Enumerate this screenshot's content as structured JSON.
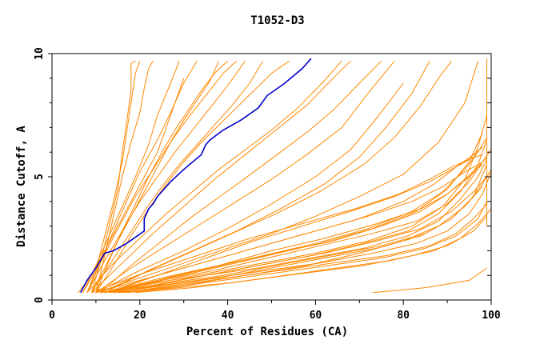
{
  "chart_data": {
    "type": "line",
    "title": "T1052-D3",
    "xlabel": "Percent of Residues (CA)",
    "ylabel": "Distance Cutoff, A",
    "xlim": [
      0,
      100
    ],
    "ylim": [
      0,
      10
    ],
    "x_ticks": [
      "0",
      "20",
      "40",
      "60",
      "80",
      "100"
    ],
    "y_ticks": [
      "0",
      "5",
      "10"
    ],
    "grid": false,
    "colors": {
      "others": "#ff8800",
      "highlight": "#0000cc"
    },
    "highlight_series": {
      "x": [
        6.5,
        8,
        10,
        11,
        12,
        14,
        17,
        21,
        21,
        22,
        23,
        24,
        25,
        26,
        27,
        30,
        34,
        35,
        36,
        39,
        43,
        47,
        49,
        53,
        57,
        59
      ],
      "y": [
        0.3,
        0.8,
        1.3,
        1.6,
        1.9,
        2.0,
        2.3,
        2.8,
        3.3,
        3.7,
        3.9,
        4.2,
        4.4,
        4.6,
        4.8,
        5.3,
        5.9,
        6.3,
        6.5,
        6.9,
        7.3,
        7.8,
        8.3,
        8.8,
        9.4,
        9.8
      ]
    },
    "series": [
      {
        "x": [
          9,
          11,
          13,
          15,
          16,
          17,
          18,
          18,
          19
        ],
        "y": [
          0.3,
          1.5,
          3.0,
          4.5,
          6.0,
          7.2,
          8.5,
          9.6,
          9.7
        ]
      },
      {
        "x": [
          8,
          10,
          12,
          14,
          16,
          17,
          18,
          19,
          20
        ],
        "y": [
          0.3,
          1.2,
          2.6,
          4.0,
          5.6,
          6.8,
          8.0,
          9.2,
          9.7
        ]
      },
      {
        "x": [
          10,
          12,
          14,
          16,
          18,
          20,
          21,
          22,
          23
        ],
        "y": [
          0.3,
          1.8,
          3.4,
          5.0,
          6.4,
          7.6,
          8.6,
          9.4,
          9.7
        ]
      },
      {
        "x": [
          7,
          10,
          13,
          16,
          19,
          22,
          24,
          27,
          29
        ],
        "y": [
          0.3,
          1.4,
          2.6,
          3.8,
          5.0,
          6.3,
          7.5,
          8.8,
          9.7
        ]
      },
      {
        "x": [
          8,
          11,
          14,
          17,
          20,
          24,
          27,
          30,
          33
        ],
        "y": [
          0.3,
          1.5,
          2.8,
          4.0,
          5.2,
          6.5,
          7.6,
          8.8,
          9.7
        ]
      },
      {
        "x": [
          6,
          9,
          12,
          15,
          18,
          21,
          24,
          27,
          30
        ],
        "y": [
          0.3,
          1.0,
          2.0,
          3.0,
          4.0,
          5.0,
          6.0,
          7.5,
          9.0
        ]
      },
      {
        "x": [
          9,
          12,
          15,
          18,
          21,
          24,
          27,
          30,
          33,
          36,
          38
        ],
        "y": [
          0.3,
          1.3,
          2.4,
          3.4,
          4.4,
          5.4,
          6.4,
          7.3,
          8.1,
          8.9,
          9.7
        ]
      },
      {
        "x": [
          10,
          13,
          16,
          19,
          22,
          25,
          28,
          31,
          34,
          37,
          40
        ],
        "y": [
          0.3,
          1.6,
          2.8,
          3.9,
          5.0,
          6.0,
          6.9,
          7.7,
          8.5,
          9.2,
          9.7
        ]
      },
      {
        "x": [
          8,
          12,
          16,
          20,
          24,
          28,
          32,
          36,
          40,
          44
        ],
        "y": [
          0.3,
          1.6,
          2.8,
          4.0,
          5.0,
          6.0,
          6.9,
          7.8,
          8.7,
          9.7
        ]
      },
      {
        "x": [
          7,
          11,
          15,
          19,
          23,
          27,
          31,
          35,
          39,
          42
        ],
        "y": [
          0.3,
          1.5,
          2.9,
          4.2,
          5.3,
          6.4,
          7.4,
          8.3,
          9.2,
          9.7
        ]
      },
      {
        "x": [
          9,
          13,
          17,
          21,
          25,
          29,
          33,
          37,
          41,
          45,
          48
        ],
        "y": [
          0.3,
          1.4,
          2.5,
          3.6,
          4.6,
          5.5,
          6.3,
          7.1,
          7.9,
          8.8,
          9.7
        ]
      },
      {
        "x": [
          10,
          14,
          18,
          22,
          26,
          30,
          34,
          38,
          42,
          46,
          50,
          54
        ],
        "y": [
          0.3,
          1.4,
          2.6,
          3.7,
          4.7,
          5.6,
          6.4,
          7.1,
          7.8,
          8.5,
          9.2,
          9.7
        ]
      },
      {
        "x": [
          8,
          14,
          20,
          26,
          32,
          38,
          44,
          50,
          56,
          62,
          66
        ],
        "y": [
          0.3,
          1.5,
          2.5,
          3.5,
          4.4,
          5.3,
          6.1,
          6.9,
          7.8,
          8.9,
          9.7
        ]
      },
      {
        "x": [
          9,
          16,
          23,
          30,
          37,
          44,
          51,
          58,
          64,
          68
        ],
        "y": [
          0.3,
          1.5,
          2.7,
          3.8,
          4.9,
          5.9,
          6.9,
          7.9,
          9.0,
          9.7
        ]
      },
      {
        "x": [
          11,
          18,
          25,
          32,
          39,
          46,
          52,
          58,
          64,
          70,
          75
        ],
        "y": [
          0.3,
          1.4,
          2.4,
          3.4,
          4.3,
          5.2,
          6.0,
          6.8,
          7.7,
          8.8,
          9.7
        ]
      },
      {
        "x": [
          10,
          18,
          26,
          34,
          42,
          50,
          58,
          66,
          72,
          78
        ],
        "y": [
          0.3,
          1.3,
          2.2,
          3.1,
          4.0,
          4.9,
          5.9,
          7.0,
          8.4,
          9.7
        ]
      },
      {
        "x": [
          12,
          22,
          32,
          42,
          52,
          62,
          70,
          76,
          82,
          86
        ],
        "y": [
          0.3,
          1.2,
          2.0,
          2.8,
          3.7,
          4.7,
          5.8,
          7.0,
          8.4,
          9.7
        ]
      },
      {
        "x": [
          11,
          21,
          31,
          41,
          51,
          61,
          71,
          78,
          84,
          88,
          91
        ],
        "y": [
          0.3,
          1.1,
          1.9,
          2.7,
          3.5,
          4.4,
          5.5,
          6.6,
          7.9,
          9.0,
          9.7
        ]
      },
      {
        "x": [
          10,
          20,
          30,
          40,
          50,
          60,
          70,
          80,
          88,
          94,
          97
        ],
        "y": [
          0.3,
          0.9,
          1.5,
          2.1,
          2.7,
          3.4,
          4.2,
          5.1,
          6.4,
          8.0,
          9.7
        ]
      },
      {
        "x": [
          13,
          25,
          37,
          49,
          61,
          73,
          83,
          90,
          95,
          98
        ],
        "y": [
          0.3,
          0.8,
          1.3,
          1.8,
          2.3,
          2.9,
          3.6,
          4.5,
          5.6,
          6.8
        ]
      },
      {
        "x": [
          12,
          24,
          36,
          48,
          60,
          72,
          82,
          89,
          94,
          97,
          99
        ],
        "y": [
          0.3,
          0.7,
          1.1,
          1.5,
          1.9,
          2.4,
          3.0,
          3.8,
          4.9,
          6.2,
          7.5
        ]
      },
      {
        "x": [
          14,
          26,
          38,
          50,
          62,
          74,
          84,
          91,
          96,
          99
        ],
        "y": [
          0.3,
          0.6,
          0.9,
          1.3,
          1.7,
          2.1,
          2.6,
          3.3,
          4.2,
          5.5
        ]
      },
      {
        "x": [
          11,
          23,
          35,
          47,
          59,
          71,
          81,
          88,
          93,
          97,
          99
        ],
        "y": [
          0.3,
          0.7,
          1.0,
          1.4,
          1.8,
          2.3,
          2.8,
          3.5,
          4.4,
          5.5,
          6.5
        ]
      },
      {
        "x": [
          13,
          25,
          37,
          49,
          61,
          73,
          83,
          90,
          95,
          98,
          100
        ],
        "y": [
          0.3,
          0.6,
          0.9,
          1.2,
          1.5,
          1.9,
          2.3,
          2.8,
          3.5,
          4.3,
          5.2
        ]
      },
      {
        "x": [
          15,
          27,
          39,
          51,
          63,
          75,
          85,
          92,
          97,
          99
        ],
        "y": [
          0.3,
          0.5,
          0.8,
          1.1,
          1.4,
          1.7,
          2.1,
          2.6,
          3.3,
          4.0
        ]
      },
      {
        "x": [
          12,
          24,
          36,
          48,
          60,
          72,
          82,
          89,
          94,
          97,
          99
        ],
        "y": [
          0.3,
          0.8,
          1.3,
          1.8,
          2.3,
          2.9,
          3.6,
          4.4,
          5.3,
          6.0,
          6.6
        ]
      },
      {
        "x": [
          10,
          22,
          34,
          46,
          58,
          70,
          80,
          87,
          92,
          96,
          98
        ],
        "y": [
          0.3,
          0.9,
          1.5,
          2.1,
          2.7,
          3.3,
          4.0,
          4.7,
          5.4,
          5.9,
          6.2
        ]
      },
      {
        "x": [
          14,
          26,
          38,
          50,
          62,
          74,
          84,
          91,
          96,
          99
        ],
        "y": [
          0.3,
          0.7,
          1.1,
          1.5,
          1.9,
          2.4,
          2.9,
          3.6,
          4.4,
          5.0
        ]
      },
      {
        "x": [
          16,
          28,
          40,
          52,
          64,
          76,
          86,
          92,
          96,
          99
        ],
        "y": [
          0.3,
          0.6,
          0.9,
          1.2,
          1.5,
          1.8,
          2.2,
          2.7,
          3.3,
          3.9
        ]
      },
      {
        "x": [
          13,
          25,
          37,
          49,
          61,
          73,
          83,
          90,
          95,
          98,
          100
        ],
        "y": [
          0.3,
          0.8,
          1.2,
          1.7,
          2.2,
          2.7,
          3.2,
          3.9,
          4.8,
          5.6,
          6.1
        ]
      },
      {
        "x": [
          11,
          23,
          35,
          47,
          59,
          71,
          81,
          88,
          93,
          97,
          99
        ],
        "y": [
          0.3,
          0.6,
          1.0,
          1.3,
          1.7,
          2.1,
          2.6,
          3.2,
          4.1,
          5.0,
          5.7
        ]
      },
      {
        "x": [
          17,
          29,
          41,
          53,
          65,
          77,
          87,
          93,
          97,
          100
        ],
        "y": [
          0.3,
          0.5,
          0.7,
          1.0,
          1.3,
          1.6,
          2.0,
          2.5,
          3.1,
          3.7
        ]
      },
      {
        "x": [
          12,
          24,
          36,
          48,
          60,
          72,
          82,
          89,
          94,
          98
        ],
        "y": [
          0.3,
          1.0,
          1.6,
          2.2,
          2.8,
          3.4,
          4.0,
          4.6,
          5.2,
          5.6
        ]
      },
      {
        "x": [
          15,
          27,
          39,
          51,
          63,
          75,
          85,
          91,
          95,
          98,
          100
        ],
        "y": [
          0.3,
          0.7,
          1.0,
          1.4,
          1.8,
          2.2,
          2.7,
          3.3,
          4.0,
          4.7,
          5.3
        ]
      },
      {
        "x": [
          9,
          21,
          33,
          45,
          57,
          69,
          79,
          86,
          91,
          95,
          98
        ],
        "y": [
          0.3,
          1.1,
          1.8,
          2.5,
          3.1,
          3.7,
          4.3,
          4.9,
          5.4,
          5.7,
          5.9
        ]
      },
      {
        "x": [
          14,
          26,
          38,
          50,
          62,
          74,
          84,
          90,
          94,
          97,
          99
        ],
        "y": [
          0.3,
          0.9,
          1.4,
          2.0,
          2.5,
          3.1,
          3.7,
          4.3,
          4.9,
          5.4,
          5.8
        ]
      },
      {
        "x": [
          13,
          24,
          35,
          46,
          57,
          68,
          78,
          86,
          92,
          96
        ],
        "y": [
          0.3,
          1.0,
          1.7,
          2.4,
          3.0,
          3.6,
          4.2,
          4.8,
          5.4,
          5.8
        ]
      },
      {
        "x": [
          10,
          20,
          30,
          40,
          50,
          60,
          68,
          74,
          80
        ],
        "y": [
          0.3,
          1.2,
          2.0,
          2.9,
          3.9,
          5.0,
          6.1,
          7.4,
          8.8
        ]
      },
      {
        "x": [
          16,
          30,
          44,
          58,
          70,
          80,
          88,
          94,
          98
        ],
        "y": [
          0.3,
          0.6,
          1.0,
          1.4,
          1.9,
          2.4,
          3.0,
          3.8,
          4.6
        ]
      },
      {
        "x": [
          73,
          85,
          95,
          99
        ],
        "y": [
          0.3,
          0.5,
          0.8,
          1.3
        ]
      },
      {
        "x": [
          19,
          32,
          45,
          58,
          71,
          82,
          90,
          96,
          99
        ],
        "y": [
          0.3,
          0.5,
          0.8,
          1.1,
          1.4,
          1.8,
          2.2,
          2.8,
          3.4
        ]
      },
      {
        "x": [
          12,
          25,
          38,
          51,
          64,
          75,
          84,
          90,
          95,
          98
        ],
        "y": [
          0.3,
          0.9,
          1.4,
          1.9,
          2.4,
          3.0,
          3.6,
          4.3,
          5.0,
          5.5
        ]
      },
      {
        "x": [
          100,
          100
        ],
        "y": [
          0.3,
          9.8
        ]
      },
      {
        "x": [
          99,
          99
        ],
        "y": [
          3.0,
          9.8
        ]
      }
    ]
  }
}
